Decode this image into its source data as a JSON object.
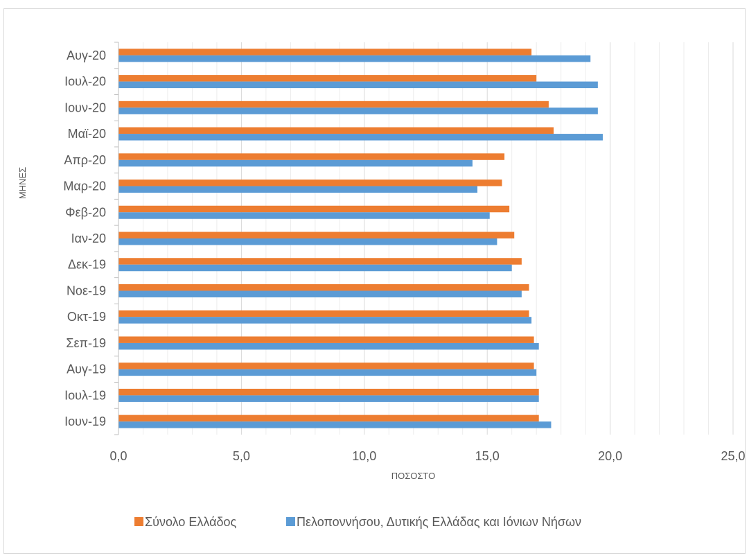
{
  "chart_data": {
    "type": "bar",
    "orientation": "horizontal",
    "categories": [
      "Ιουν-19",
      "Ιουλ-19",
      "Αυγ-19",
      "Σεπ-19",
      "Οκτ-19",
      "Νοε-19",
      "Δεκ-19",
      "Ιαν-20",
      "Φεβ-20",
      "Μαρ-20",
      "Απρ-20",
      "Μαϊ-20",
      "Ιουν-20",
      "Ιουλ-20",
      "Αυγ-20"
    ],
    "series": [
      {
        "name": "Σύνολο Ελλάδος",
        "color": "#ED7D31",
        "values": [
          17.1,
          17.1,
          16.9,
          16.9,
          16.7,
          16.7,
          16.4,
          16.1,
          15.9,
          15.6,
          15.7,
          17.7,
          17.5,
          17.0,
          16.8
        ]
      },
      {
        "name": "Πελοποννήσου, Δυτικής Ελλάδας και Ιόνιων Νήσων",
        "color": "#5B9BD5",
        "values": [
          17.6,
          17.1,
          17.0,
          17.1,
          16.8,
          16.4,
          16.0,
          15.4,
          15.1,
          14.6,
          14.4,
          19.7,
          19.5,
          19.5,
          19.2
        ]
      }
    ],
    "xlabel": "ΠΟΣΟΣΤΟ",
    "ylabel": "ΜΗΝΕΣ",
    "xlim": [
      0,
      25
    ],
    "x_ticks": [
      "0,0",
      "5,0",
      "10,0",
      "15,0",
      "20,0",
      "25,0"
    ],
    "x_tick_step": 5,
    "x_minor_step": 1,
    "grid": true,
    "legend_position": "bottom"
  }
}
